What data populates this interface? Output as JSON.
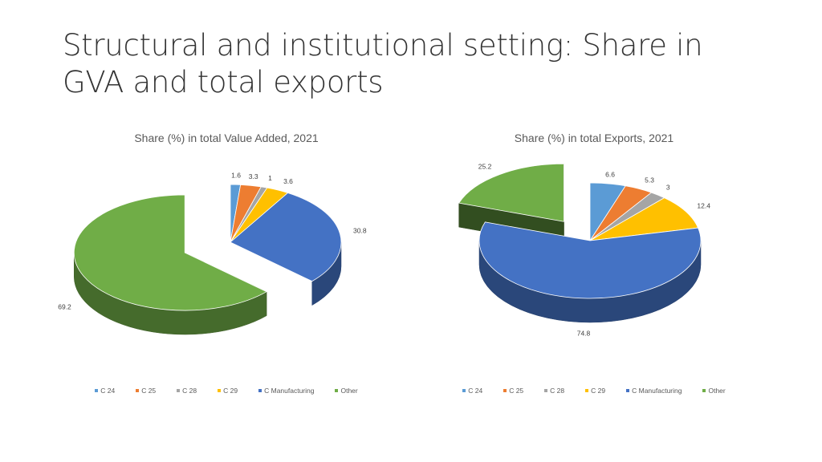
{
  "slide": {
    "title": "Structural and institutional setting: Share in GVA and total exports"
  },
  "colors": {
    "C 24": "#5B9BD5",
    "C 25": "#ED7D31",
    "C 28": "#A5A5A5",
    "C 29": "#FFC000",
    "C Manufacturing": "#4472C4",
    "Other": "#70AD47"
  },
  "chart_data": [
    {
      "type": "pie",
      "subtype": "3d-exploded",
      "title": "Share (%) in total Value Added, 2021",
      "categories": [
        "C 24",
        "C 25",
        "C 28",
        "C 29",
        "C Manufacturing",
        "Other"
      ],
      "values": [
        1.6,
        3.3,
        1,
        3.6,
        30.8,
        69.2
      ],
      "legend_position": "bottom"
    },
    {
      "type": "pie",
      "subtype": "3d-exploded",
      "title": "Share (%) in total Exports, 2021",
      "categories": [
        "C 24",
        "C 25",
        "C 28",
        "C 29",
        "C Manufacturing",
        "Other"
      ],
      "values": [
        6.6,
        5.3,
        3,
        12.4,
        74.8,
        25.2
      ],
      "legend_position": "bottom"
    }
  ]
}
